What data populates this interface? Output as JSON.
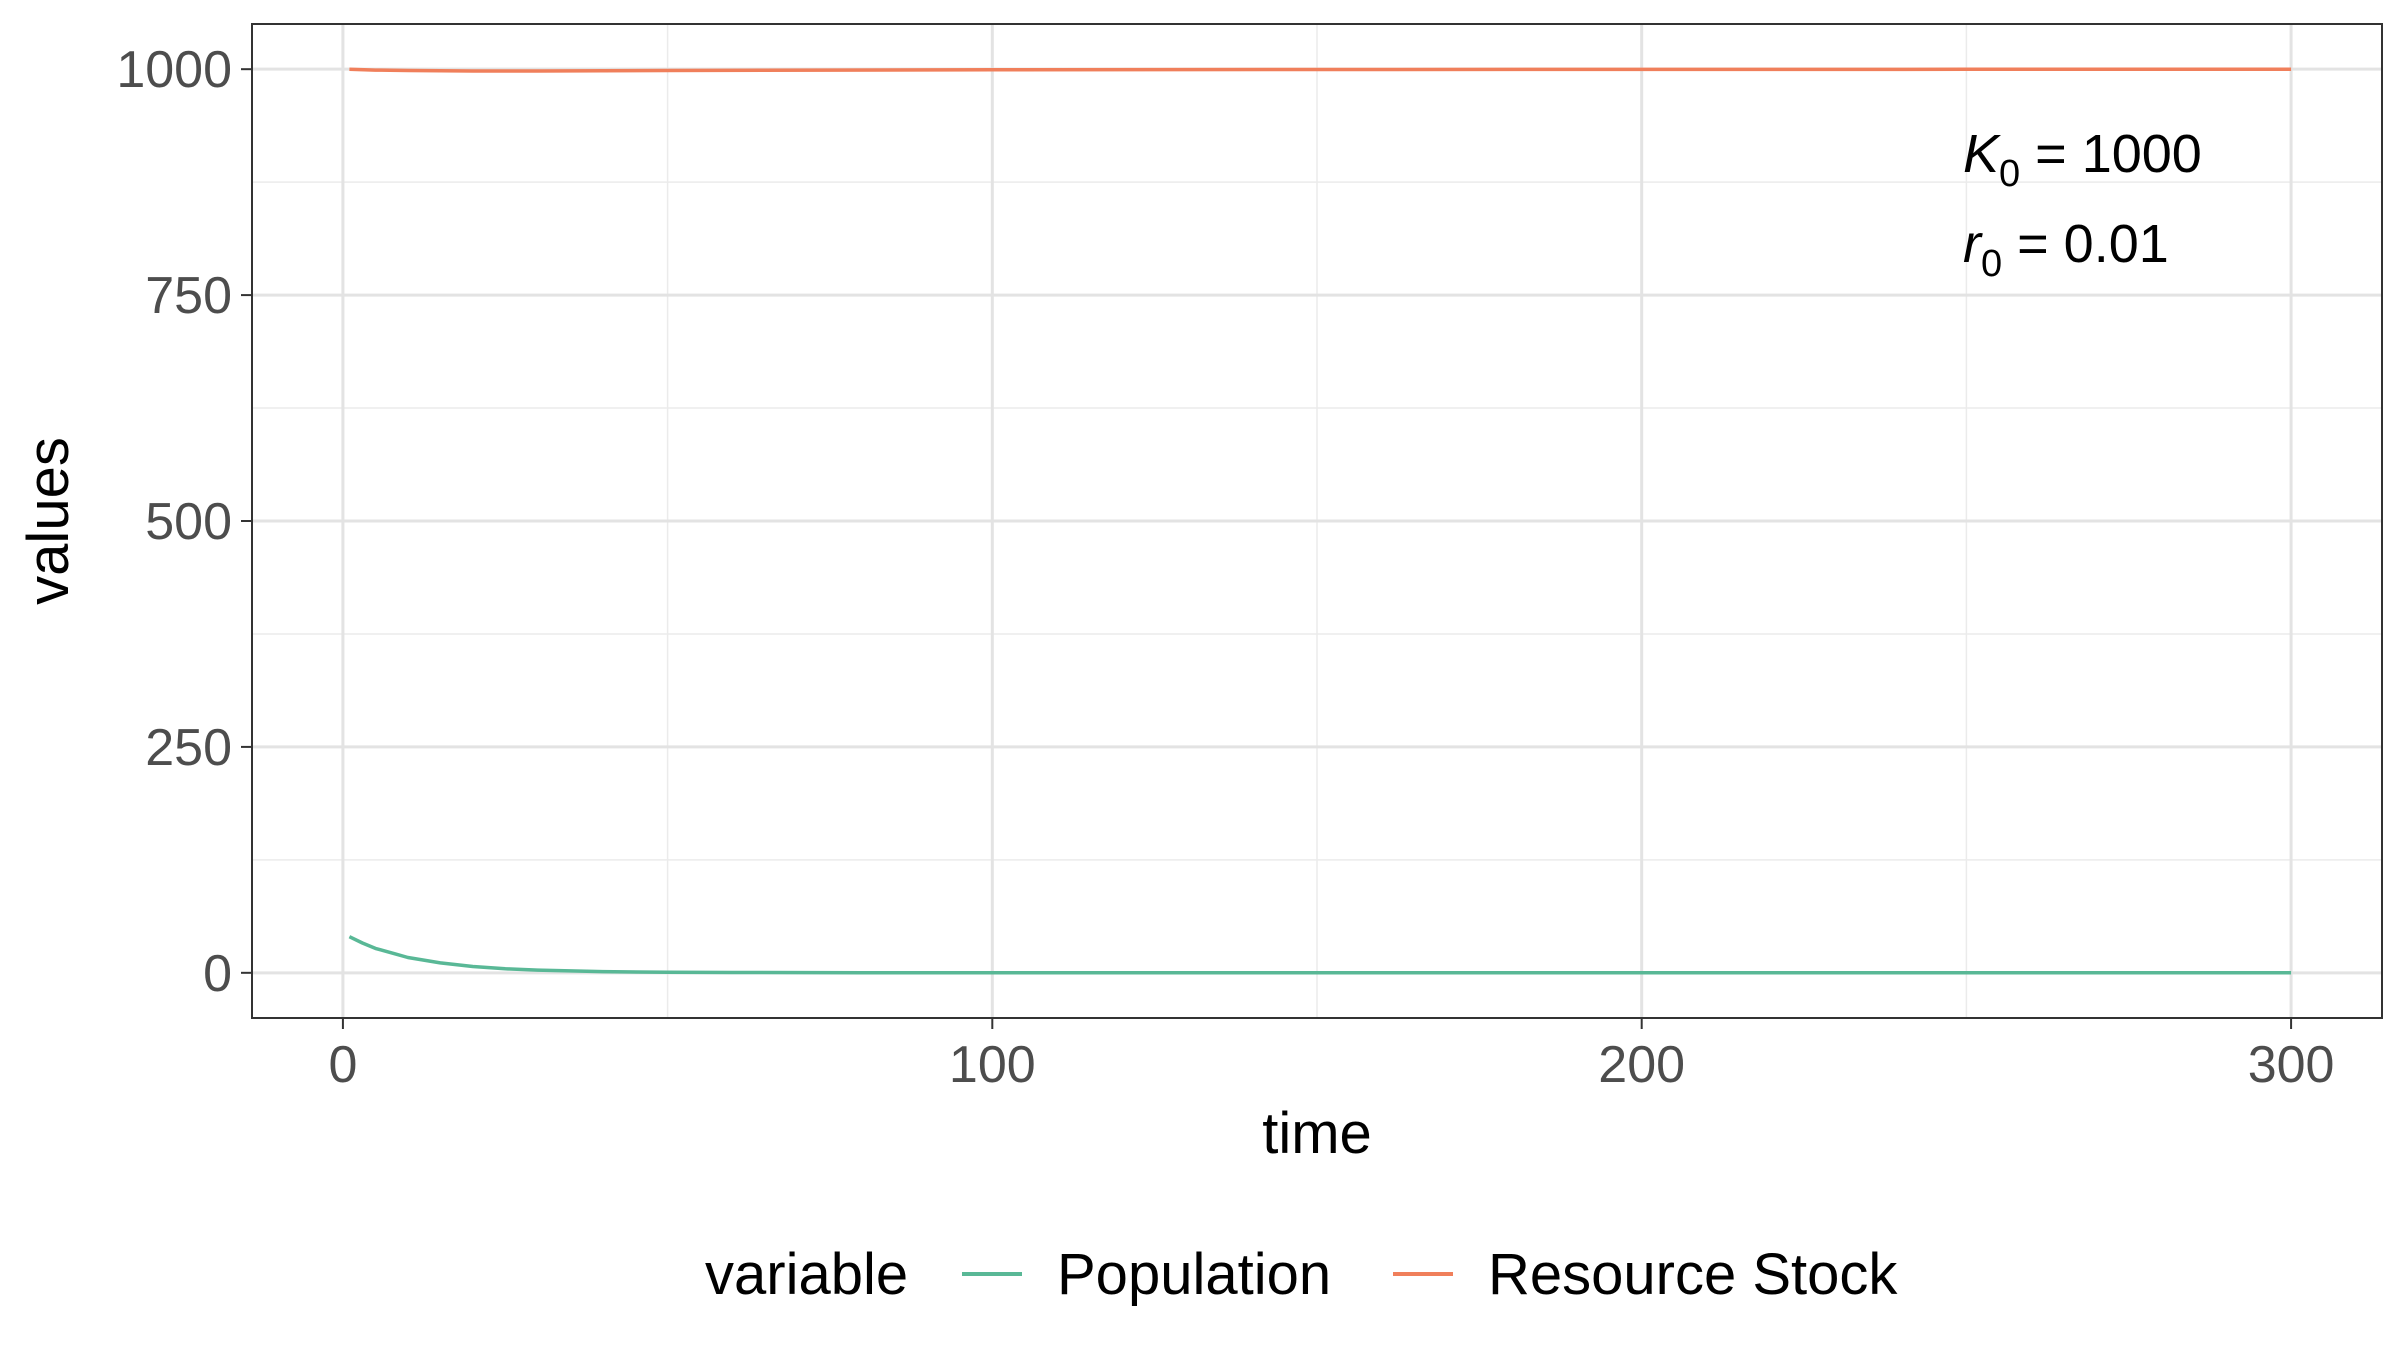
{
  "chart_data": {
    "type": "line",
    "title": "",
    "xlabel": "time",
    "ylabel": "values",
    "xlim": [
      -14,
      314
    ],
    "ylim": [
      -50,
      1050
    ],
    "x_ticks": [
      0,
      100,
      200,
      300
    ],
    "x_tick_labels": [
      "0",
      "100",
      "200",
      "300"
    ],
    "y_ticks": [
      0,
      250,
      500,
      750,
      1000
    ],
    "y_tick_labels": [
      "0",
      "250",
      "500",
      "750",
      "1000"
    ],
    "grid": true,
    "legend_position": "bottom",
    "legend_title": "variable",
    "annotations": [
      {
        "symbol": "K",
        "subscript": "0",
        "text": " = 1000"
      },
      {
        "symbol": "r",
        "subscript": "0",
        "text": " = 0.01"
      }
    ],
    "series": [
      {
        "name": "Population",
        "color": "#59b896",
        "x": [
          1,
          3,
          5,
          8,
          10,
          15,
          20,
          25,
          30,
          40,
          50,
          60,
          80,
          100,
          150,
          200,
          250,
          300
        ],
        "y": [
          40,
          33,
          27,
          21,
          17,
          11,
          7,
          4.5,
          3,
          1.3,
          0.6,
          0.3,
          0.1,
          0.05,
          0.02,
          0.01,
          0.01,
          0.01
        ]
      },
      {
        "name": "Resource Stock",
        "color": "#f07f5b",
        "x": [
          1,
          5,
          10,
          20,
          30,
          50,
          75,
          100,
          150,
          200,
          250,
          300
        ],
        "y": [
          1000,
          999,
          998.5,
          998,
          998,
          998.5,
          999,
          999.3,
          999.6,
          999.8,
          999.9,
          1000
        ]
      }
    ]
  }
}
